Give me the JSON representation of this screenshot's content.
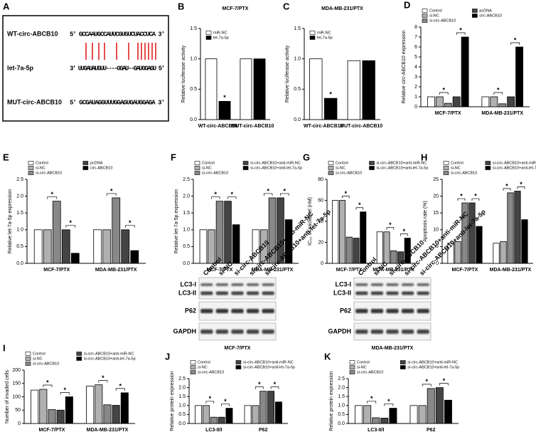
{
  "panel_a": {
    "panel": "A",
    "rows": [
      {
        "label": "WT-circ-ABCB10",
        "sequence": "5' GCCAAUGCCAUUCGUGUCUACCUCA 3'"
      },
      {
        "label": "let-7a-5p",
        "sequence": "3' UUGAUAUGUU----GGAU--GAUGGAGU 5'"
      },
      {
        "label": "MUT-circ-ABCB10",
        "sequence": "5' GCGAUAGGUUUGGAGUGAUGGAGA 3'"
      }
    ]
  },
  "chart_data": [
    {
      "panel": "B",
      "type": "bar",
      "title": "MCF-7/PTX",
      "ylabel": "Relative luciferase activity",
      "categories": [
        "WT-circ-ABCB10",
        "MUT-circ-ABCB10"
      ],
      "series": [
        {
          "name": "miR-NC",
          "color": "#ffffff",
          "values": [
            1.0,
            1.0
          ]
        },
        {
          "name": "let-7a-5p",
          "color": "#000000",
          "values": [
            0.3,
            1.0
          ]
        }
      ],
      "ylim": [
        0,
        1.5
      ],
      "yticks": [
        {
          "value": 0,
          "label": "0.0"
        },
        0.5,
        {
          "value": 1,
          "label": "1.0"
        },
        1.5
      ],
      "annotation": "*"
    },
    {
      "panel": "C",
      "type": "bar",
      "title": "MDA-MB-231/PTX",
      "ylabel": "Relative luciferase activity",
      "categories": [
        "WT-circ-ABCB10",
        "MUT-circ-ABCB10"
      ],
      "series": [
        {
          "name": "miR-NC",
          "color": "#ffffff",
          "values": [
            1.0,
            0.97
          ]
        },
        {
          "name": "let-7a-5p",
          "color": "#000000",
          "values": [
            0.35,
            0.97
          ]
        }
      ],
      "ylim": [
        0,
        1.5
      ],
      "yticks": [
        {
          "value": 0,
          "label": "0.0"
        },
        0.5,
        {
          "value": 1,
          "label": "1.0"
        },
        1.5
      ],
      "annotation": "*"
    },
    {
      "panel": "D",
      "type": "bar",
      "ylabel": "Relative circ-ABCB10 expression",
      "categories": [
        "MCF-7/PTX",
        "MDA-MB-231/PTX"
      ],
      "series": [
        {
          "name": "Control",
          "color": "#ffffff",
          "values": [
            1.0,
            1.0
          ]
        },
        {
          "name": "si-NC",
          "color": "#b0b0b0",
          "values": [
            1.0,
            1.0
          ]
        },
        {
          "name": "si-circ-ABCB10",
          "color": "#888888",
          "values": [
            0.35,
            0.3
          ]
        },
        {
          "name": "pcDNA",
          "color": "#444444",
          "values": [
            1.0,
            1.0
          ]
        },
        {
          "name": "circ-ABCB10",
          "color": "#000000",
          "values": [
            7.0,
            6.0
          ]
        }
      ],
      "ylim": [
        0,
        8
      ],
      "yticks": [
        0,
        1,
        2,
        3,
        4,
        5,
        6,
        7,
        8
      ],
      "annotation": "*"
    },
    {
      "panel": "E",
      "type": "bar",
      "ylabel": "Relative let-7a-5p expression",
      "categories": [
        "MCF-7/PTX",
        "MDA-MB-231/PTX"
      ],
      "series": [
        {
          "name": "Control",
          "color": "#ffffff",
          "values": [
            1.0,
            1.0
          ]
        },
        {
          "name": "si-NC",
          "color": "#b0b0b0",
          "values": [
            1.0,
            1.0
          ]
        },
        {
          "name": "si-circ-ABCB10",
          "color": "#888888",
          "values": [
            1.85,
            1.95
          ]
        },
        {
          "name": "pcDNA",
          "color": "#444444",
          "values": [
            1.0,
            1.0
          ]
        },
        {
          "name": "circ-ABCB10",
          "color": "#000000",
          "values": [
            0.3,
            0.38
          ]
        }
      ],
      "ylim": [
        0,
        2.5
      ],
      "yticks": [
        {
          "value": 0,
          "label": "0.0"
        },
        0.5,
        {
          "value": 1,
          "label": "1.0"
        },
        1.5,
        {
          "value": 2,
          "label": "2.0"
        },
        2.5
      ],
      "annotation": "*"
    },
    {
      "panel": "F",
      "type": "bar",
      "ylabel": "Relative let-7a-5p expression",
      "categories": [
        "MCF-7/PTX",
        "MDA-MB-231/PTX"
      ],
      "series": [
        {
          "name": "Control",
          "color": "#ffffff",
          "values": [
            1.0,
            1.0
          ]
        },
        {
          "name": "si-NC",
          "color": "#b0b0b0",
          "values": [
            1.0,
            1.0
          ]
        },
        {
          "name": "si-circ-ABCB10",
          "color": "#888888",
          "values": [
            1.85,
            1.95
          ]
        },
        {
          "name": "si-circ-ABCB10+anti-miR-NC",
          "color": "#444444",
          "values": [
            1.85,
            1.95
          ]
        },
        {
          "name": "si-circ-ABCB10+anti-let-7a-5p",
          "color": "#000000",
          "values": [
            1.15,
            1.3
          ]
        }
      ],
      "ylim": [
        0,
        2.5
      ],
      "yticks": [
        {
          "value": 0,
          "label": "0.0"
        },
        0.5,
        {
          "value": 1,
          "label": "1.0"
        },
        1.5,
        {
          "value": 2,
          "label": "2.0"
        },
        2.5
      ],
      "annotation": "*"
    },
    {
      "panel": "G",
      "type": "bar",
      "ylabel": "IC₅₀ of paclitaxel (nM)",
      "categories": [
        "MCF-7/PTX",
        "MDA-MB-231/PTX"
      ],
      "series": [
        {
          "name": "Control",
          "color": "#ffffff",
          "values": [
            60,
            30
          ]
        },
        {
          "name": "si-NC",
          "color": "#b0b0b0",
          "values": [
            60,
            30
          ]
        },
        {
          "name": "si-circ-ABCB10",
          "color": "#888888",
          "values": [
            25,
            12
          ]
        },
        {
          "name": "si-circ-ABCB10+anti-miR-NC",
          "color": "#444444",
          "values": [
            24,
            11
          ]
        },
        {
          "name": "si-circ-ABCB10+anti-let-7a-5p",
          "color": "#000000",
          "values": [
            49,
            24
          ]
        }
      ],
      "ylim": [
        0,
        80
      ],
      "yticks": [
        0,
        20,
        40,
        60,
        80
      ],
      "annotation": "*"
    },
    {
      "panel": "H",
      "type": "bar",
      "ylabel": "Apoptosis rate (%)",
      "categories": [
        "MCF-7/PTX",
        "MDA-MB-231/PTX"
      ],
      "series": [
        {
          "name": "Control",
          "color": "#ffffff",
          "values": [
            6,
            6
          ]
        },
        {
          "name": "si-NC",
          "color": "#b0b0b0",
          "values": [
            6.5,
            6.5
          ]
        },
        {
          "name": "si-circ-ABCB10",
          "color": "#888888",
          "values": [
            18,
            21
          ]
        },
        {
          "name": "si-circ-ABCB10+anti-miR-NC",
          "color": "#444444",
          "values": [
            18,
            21.5
          ]
        },
        {
          "name": "si-circ-ABCB10+anti-let-7a-5p",
          "color": "#000000",
          "values": [
            11,
            13
          ]
        }
      ],
      "ylim": [
        0,
        25
      ],
      "yticks": [
        0,
        5,
        10,
        15,
        20,
        25
      ],
      "annotation": "*"
    },
    {
      "panel": "I",
      "type": "bar",
      "ylabel": "Number of invaded cells",
      "categories": [
        "MCF-7/PTX",
        "MDA-MB-231/PTX"
      ],
      "series": [
        {
          "name": "Control",
          "color": "#ffffff",
          "values": [
            125,
            140
          ]
        },
        {
          "name": "si-NC",
          "color": "#b0b0b0",
          "values": [
            128,
            145
          ]
        },
        {
          "name": "si-circ-ABCB10",
          "color": "#888888",
          "values": [
            52,
            70
          ]
        },
        {
          "name": "si-circ-ABCB10+anti-miR-NC",
          "color": "#444444",
          "values": [
            50,
            68
          ]
        },
        {
          "name": "si-circ-ABCB10+anti-let-7a-5p",
          "color": "#000000",
          "values": [
            100,
            115
          ]
        }
      ],
      "ylim": [
        0,
        200
      ],
      "yticks": [
        0,
        50,
        100,
        150,
        200
      ],
      "annotation": "*"
    },
    {
      "panel": "J",
      "type": "bar",
      "ylabel": "Relative protein expression",
      "categories": [
        "LC3-II/I",
        "P62"
      ],
      "series": [
        {
          "name": "Control",
          "color": "#ffffff",
          "values": [
            1.0,
            1.0
          ]
        },
        {
          "name": "si-NC",
          "color": "#b0b0b0",
          "values": [
            1.0,
            1.0
          ]
        },
        {
          "name": "si-circ-ABCB10",
          "color": "#888888",
          "values": [
            0.35,
            1.8
          ]
        },
        {
          "name": "si-circ-ABCB10+anti-miR-NC",
          "color": "#444444",
          "values": [
            0.35,
            1.8
          ]
        },
        {
          "name": "si-circ-ABCB10+anti-let-7a-5p",
          "color": "#000000",
          "values": [
            0.85,
            1.2
          ]
        }
      ],
      "ylim": [
        0,
        2.5
      ],
      "yticks": [
        {
          "value": 0,
          "label": "0.0"
        },
        0.5,
        {
          "value": 1,
          "label": "1.0"
        },
        1.5,
        {
          "value": 2,
          "label": "2.0"
        },
        2.5
      ],
      "annotation": "*"
    },
    {
      "panel": "K",
      "type": "bar",
      "ylabel": "Relative protein expression",
      "categories": [
        "LC3-II/I",
        "P62"
      ],
      "series": [
        {
          "name": "Control",
          "color": "#ffffff",
          "values": [
            1.0,
            1.0
          ]
        },
        {
          "name": "si-NC",
          "color": "#b0b0b0",
          "values": [
            1.0,
            1.0
          ]
        },
        {
          "name": "si-circ-ABCB10",
          "color": "#888888",
          "values": [
            0.32,
            1.95
          ]
        },
        {
          "name": "si-circ-ABCB10+anti-miR-NC",
          "color": "#444444",
          "values": [
            0.3,
            2.0
          ]
        },
        {
          "name": "si-circ-ABCB10+anti-let-7a-5p",
          "color": "#000000",
          "values": [
            0.85,
            1.3
          ]
        }
      ],
      "ylim": [
        0,
        2.5
      ],
      "yticks": [
        {
          "value": 0,
          "label": "0.0"
        },
        0.5,
        {
          "value": 1,
          "label": "1.0"
        },
        1.5,
        {
          "value": 2,
          "label": "2.0"
        },
        2.5
      ],
      "annotation": "*"
    }
  ],
  "blots": [
    {
      "title": "MCF-7/PTX",
      "lanes": [
        "Control",
        "si-NC",
        "si-circ-ABCB10",
        "si-circ-ABCB10+anti-miR-NC",
        "si-circ-ABCB10+anti-let-7a-5p"
      ],
      "rows": [
        "LC3-I",
        "LC3-II",
        "P62",
        "GAPDH"
      ]
    },
    {
      "title": "MDA-MB-231/PTX",
      "lanes": [
        "Control",
        "si-NC",
        "si-circ-ABCB10",
        "si-circ-ABCB10+anti-miR-NC",
        "si-circ-ABCB10+anti-let-7a-5p"
      ],
      "rows": [
        "LC3-I",
        "LC3-II",
        "P62",
        "GAPDH"
      ]
    }
  ]
}
